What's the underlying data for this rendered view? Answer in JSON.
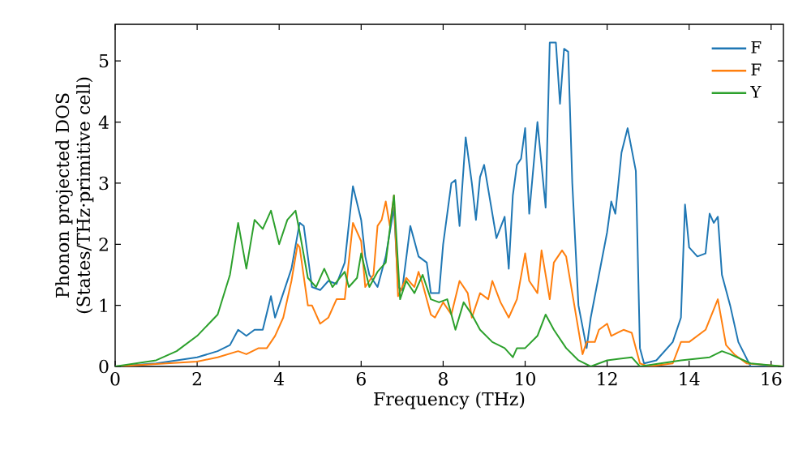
{
  "chart_data": {
    "type": "line",
    "xlabel": "Frequency (THz)",
    "ylabel": "Phonon projected DOS\n(States/THz·primitive cell)",
    "xlim": [
      0,
      16.3
    ],
    "ylim": [
      0,
      5.6
    ],
    "xticks": [
      0,
      2,
      4,
      6,
      8,
      10,
      12,
      14,
      16
    ],
    "yticks": [
      0,
      1,
      2,
      3,
      4,
      5
    ],
    "legend": "top right",
    "grid": false,
    "series": [
      {
        "name": "F",
        "color": "#1f77b4",
        "x": [
          0,
          1,
          2,
          2.5,
          2.8,
          3.0,
          3.2,
          3.4,
          3.6,
          3.8,
          3.9,
          4.1,
          4.3,
          4.5,
          4.6,
          4.8,
          5.0,
          5.2,
          5.4,
          5.6,
          5.8,
          6.0,
          6.1,
          6.2,
          6.4,
          6.6,
          6.8,
          6.9,
          7.0,
          7.2,
          7.4,
          7.6,
          7.7,
          7.9,
          8.0,
          8.2,
          8.3,
          8.4,
          8.55,
          8.7,
          8.8,
          8.9,
          9.0,
          9.1,
          9.3,
          9.5,
          9.6,
          9.7,
          9.8,
          9.9,
          10.0,
          10.1,
          10.3,
          10.5,
          10.6,
          10.75,
          10.85,
          10.95,
          11.05,
          11.15,
          11.3,
          11.5,
          11.6,
          11.8,
          12.0,
          12.1,
          12.2,
          12.35,
          12.5,
          12.7,
          12.8,
          12.9,
          13.2,
          13.6,
          13.8,
          13.9,
          14.0,
          14.2,
          14.4,
          14.5,
          14.6,
          14.7,
          14.8,
          15.0,
          15.2,
          15.5,
          16.3
        ],
        "values": [
          0,
          0.05,
          0.15,
          0.25,
          0.35,
          0.6,
          0.5,
          0.6,
          0.6,
          1.15,
          0.8,
          1.2,
          1.6,
          2.35,
          2.3,
          1.3,
          1.25,
          1.4,
          1.35,
          1.7,
          2.95,
          2.4,
          1.8,
          1.5,
          1.3,
          1.8,
          2.6,
          1.3,
          1.25,
          2.3,
          1.8,
          1.7,
          1.2,
          1.2,
          2.0,
          3.0,
          3.05,
          2.3,
          3.75,
          3.0,
          2.4,
          3.1,
          3.3,
          2.9,
          2.1,
          2.45,
          1.6,
          2.8,
          3.3,
          3.4,
          3.9,
          2.5,
          4.0,
          2.6,
          5.3,
          5.3,
          4.3,
          5.2,
          5.15,
          3.0,
          1.0,
          0.3,
          0.8,
          1.5,
          2.2,
          2.7,
          2.5,
          3.5,
          3.9,
          3.2,
          0.3,
          0.05,
          0.1,
          0.4,
          0.8,
          2.65,
          1.95,
          1.8,
          1.85,
          2.5,
          2.35,
          2.45,
          1.5,
          1.0,
          0.4,
          0,
          0
        ]
      },
      {
        "name": "F",
        "color": "#ff7f0e",
        "x": [
          0,
          2,
          2.5,
          3.0,
          3.2,
          3.5,
          3.7,
          3.9,
          4.1,
          4.3,
          4.45,
          4.5,
          4.7,
          4.8,
          5.0,
          5.2,
          5.4,
          5.6,
          5.8,
          6.0,
          6.1,
          6.3,
          6.4,
          6.5,
          6.6,
          6.7,
          6.8,
          6.9,
          7.1,
          7.3,
          7.4,
          7.5,
          7.7,
          7.8,
          8.0,
          8.2,
          8.4,
          8.6,
          8.7,
          8.9,
          9.1,
          9.2,
          9.4,
          9.6,
          9.8,
          10.0,
          10.1,
          10.3,
          10.4,
          10.6,
          10.7,
          10.9,
          11.0,
          11.2,
          11.4,
          11.5,
          11.7,
          11.8,
          12.0,
          12.1,
          12.4,
          12.6,
          12.8,
          13.0,
          13.6,
          13.8,
          14.0,
          14.4,
          14.7,
          14.9,
          15.1,
          15.4,
          16.3
        ],
        "values": [
          0,
          0.08,
          0.15,
          0.25,
          0.2,
          0.3,
          0.3,
          0.5,
          0.8,
          1.4,
          2.0,
          1.95,
          1.0,
          1.0,
          0.7,
          0.8,
          1.1,
          1.1,
          2.35,
          2.05,
          1.3,
          1.5,
          2.3,
          2.4,
          2.7,
          2.3,
          2.8,
          1.15,
          1.45,
          1.3,
          1.55,
          1.35,
          0.85,
          0.8,
          1.05,
          0.85,
          1.4,
          1.2,
          0.8,
          1.2,
          1.1,
          1.4,
          1.05,
          0.8,
          1.1,
          1.85,
          1.4,
          1.2,
          1.9,
          1.1,
          1.7,
          1.9,
          1.8,
          1.0,
          0.2,
          0.4,
          0.4,
          0.6,
          0.7,
          0.5,
          0.6,
          0.55,
          0.05,
          0,
          0.05,
          0.4,
          0.4,
          0.6,
          1.1,
          0.35,
          0.2,
          0.05,
          0
        ]
      },
      {
        "name": "Y",
        "color": "#2ca02c",
        "x": [
          0,
          1,
          1.5,
          2,
          2.5,
          2.8,
          3.0,
          3.2,
          3.4,
          3.6,
          3.8,
          4.0,
          4.2,
          4.4,
          4.5,
          4.7,
          4.9,
          5.1,
          5.3,
          5.6,
          5.7,
          5.9,
          6.0,
          6.2,
          6.4,
          6.6,
          6.8,
          6.95,
          7.1,
          7.3,
          7.5,
          7.7,
          7.9,
          8.1,
          8.3,
          8.5,
          8.7,
          8.9,
          9.2,
          9.5,
          9.7,
          9.8,
          10.0,
          10.3,
          10.5,
          10.7,
          11.0,
          11.3,
          11.6,
          12.0,
          12.6,
          12.8,
          13.8,
          14.5,
          14.8,
          15.0,
          15.5,
          16.3
        ],
        "values": [
          0,
          0.1,
          0.25,
          0.5,
          0.85,
          1.5,
          2.35,
          1.6,
          2.4,
          2.25,
          2.55,
          2.0,
          2.4,
          2.55,
          2.2,
          1.45,
          1.3,
          1.6,
          1.3,
          1.55,
          1.3,
          1.45,
          1.85,
          1.3,
          1.55,
          1.7,
          2.8,
          1.1,
          1.4,
          1.2,
          1.5,
          1.1,
          1.05,
          1.1,
          0.6,
          1.05,
          0.85,
          0.6,
          0.4,
          0.3,
          0.15,
          0.3,
          0.3,
          0.5,
          0.85,
          0.6,
          0.3,
          0.1,
          0,
          0.1,
          0.15,
          0,
          0.1,
          0.15,
          0.25,
          0.2,
          0.05,
          0
        ]
      }
    ]
  }
}
